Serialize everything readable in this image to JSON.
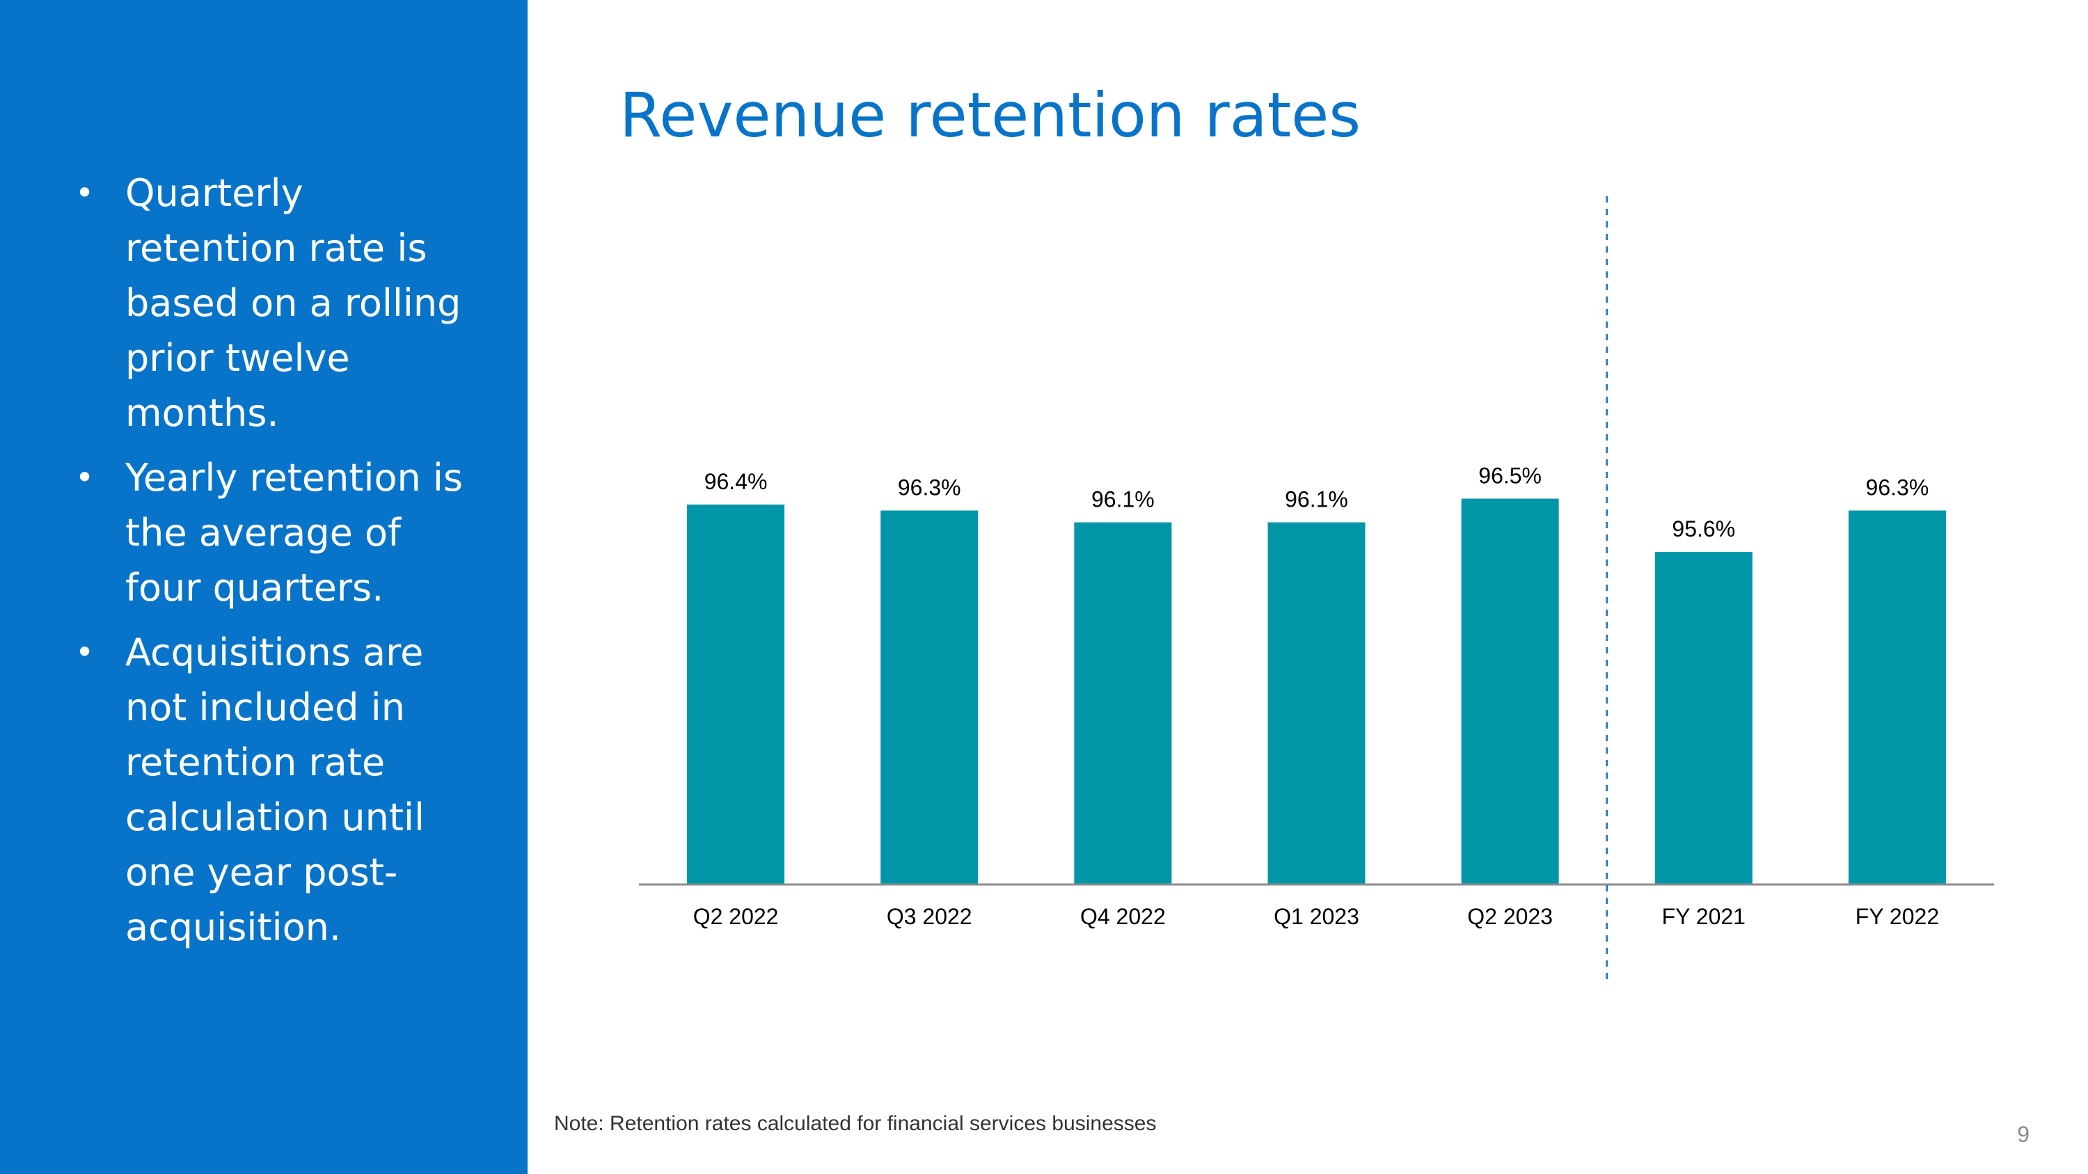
{
  "slide": {
    "title": "Revenue retention rates",
    "bullets": [
      "Quarterly retention rate is based on a rolling prior twelve months.",
      "Yearly retention is the average of four quarters.",
      "Acquisitions are not included in retention rate calculation until one year post-acquisition."
    ],
    "bullet_symbol": "•",
    "note": "Note: Retention rates calculated for financial services businesses",
    "page_number": "9",
    "colors": {
      "sidebar": "#0774c9",
      "title": "#0774c9",
      "bar": "#0096a8",
      "divider": "#2e78c2"
    }
  },
  "chart_data": {
    "type": "bar",
    "title": "",
    "xlabel": "",
    "ylabel": "",
    "categories": [
      "Q2 2022",
      "Q3 2022",
      "Q4 2022",
      "Q1 2023",
      "Q2 2023",
      "FY 2021",
      "FY 2022"
    ],
    "values": [
      96.4,
      96.3,
      96.1,
      96.1,
      96.5,
      95.6,
      96.3
    ],
    "value_labels": [
      "96.4%",
      "96.3%",
      "96.1%",
      "96.1%",
      "96.5%",
      "95.6%",
      "96.3%"
    ],
    "ylim": [
      90.0,
      96.6
    ],
    "grid": false,
    "legend": "none",
    "divider_after_index": 4
  }
}
